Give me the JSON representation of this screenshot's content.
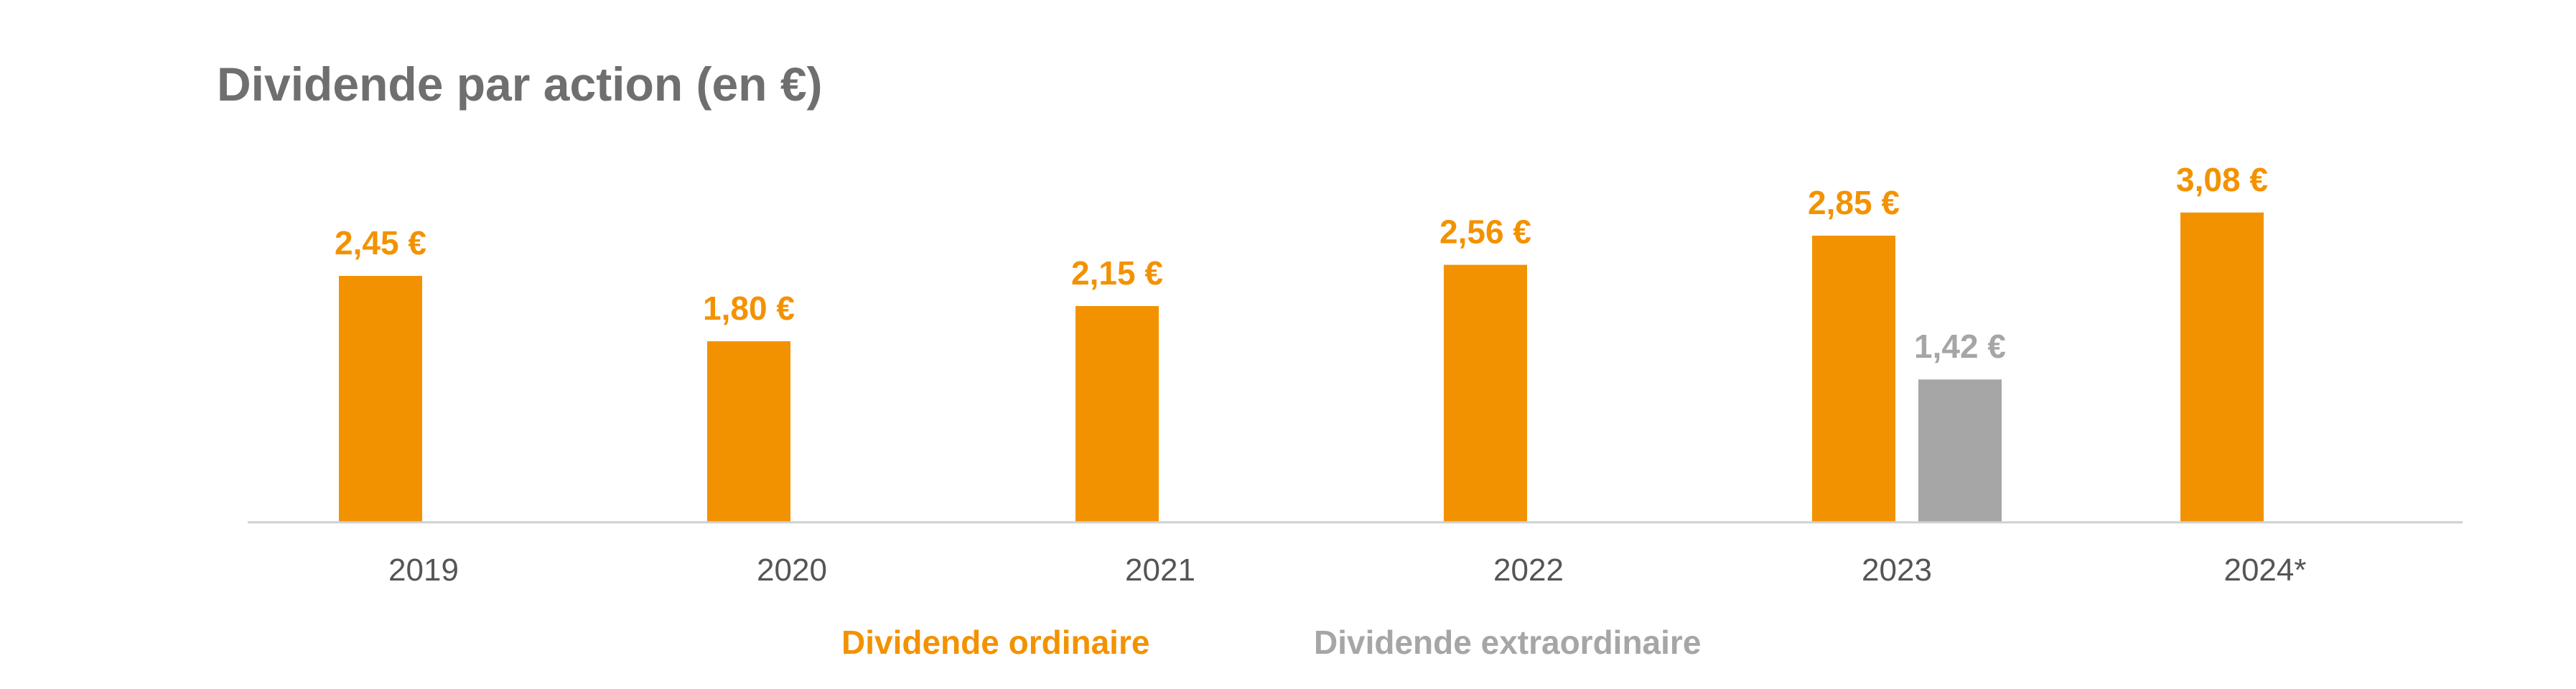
{
  "chart_data": {
    "type": "bar",
    "title": "Dividende par action (en €)",
    "categories": [
      "2019",
      "2020",
      "2021",
      "2022",
      "2023",
      "2024*"
    ],
    "series": [
      {
        "name": "Dividende ordinaire",
        "color": "#f39200",
        "values": [
          2.45,
          1.8,
          2.15,
          2.56,
          2.85,
          3.08
        ],
        "labels": [
          "2,45 €",
          "1,80 €",
          "2,15 €",
          "2,56 €",
          "2,85 €",
          "3,08 €"
        ]
      },
      {
        "name": "Dividende extraordinaire",
        "color": "#a6a6a6",
        "values": [
          null,
          null,
          null,
          null,
          1.42,
          null
        ],
        "labels": [
          "",
          "",
          "",
          "",
          "1,42 €",
          ""
        ]
      }
    ],
    "ylim": [
      0,
      3.4
    ],
    "grid": false,
    "legend_position": "bottom"
  }
}
